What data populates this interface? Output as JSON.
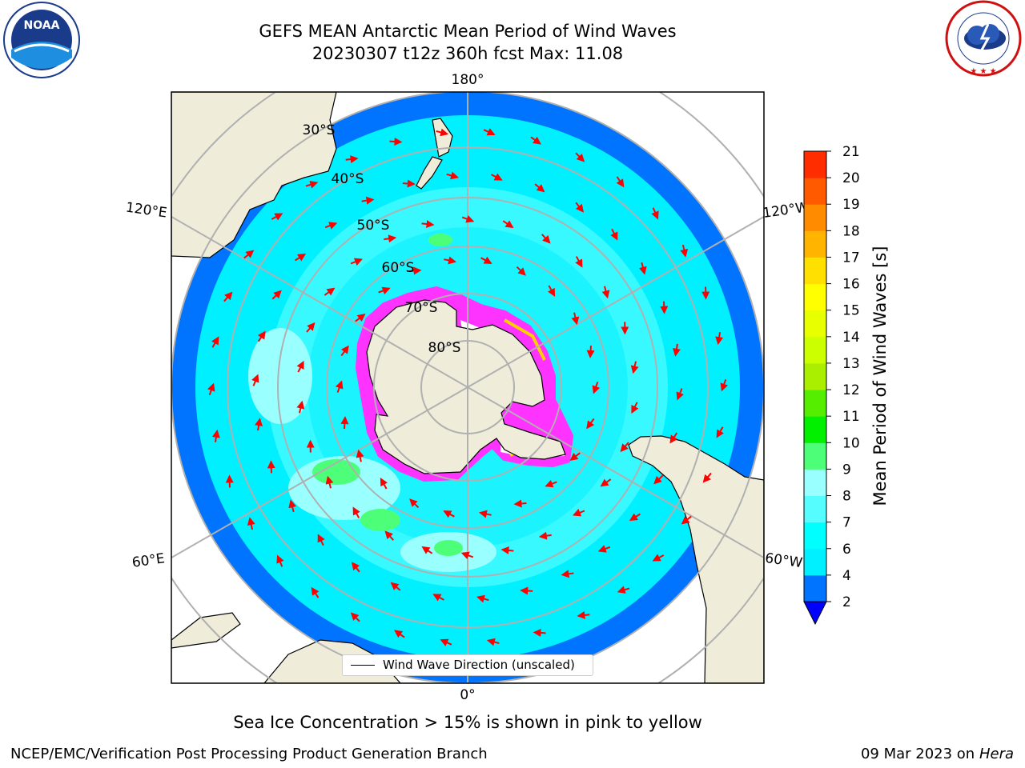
{
  "header": {
    "title_line1": "GEFS MEAN Antarctic Mean Period of Wind Waves",
    "title_line2": "20230307 t12z 360h fcst   Max: 11.08"
  },
  "logos": {
    "left": {
      "name": "noaa-logo",
      "text": "NOAA",
      "ring_text": "NATIONAL OCEANIC AND ATMOSPHERIC ADMINISTRATION · U.S. DEPARTMENT OF COMMERCE"
    },
    "right": {
      "name": "nws-logo",
      "ring_text": "NATIONAL WEATHER SERVICE"
    }
  },
  "map": {
    "projection": "south-polar-stereographic",
    "longitude_labels": [
      "180°",
      "120°E",
      "120°W",
      "60°E",
      "60°W",
      "0°"
    ],
    "latitude_labels": [
      "30°S",
      "40°S",
      "50°S",
      "60°S",
      "70°S",
      "80°S"
    ],
    "legend_label": "Wind Wave Direction (unscaled)",
    "colors": {
      "land": "#efedda",
      "ocean_2_4": "#0073ff",
      "ocean_4_6": "#00f0ff",
      "ocean_6_8": "#55fdff",
      "ocean_8_9": "#99ffff",
      "ocean_9_10": "#4dff78",
      "arrow": "#ff0000",
      "sea_ice": "#ff33ff",
      "sea_ice_edge": "#ffd000"
    }
  },
  "colorbar": {
    "label": "Mean Period of Wind Waves [s]",
    "ticks": [
      "2",
      "4",
      "6",
      "7",
      "8",
      "9",
      "10",
      "11",
      "12",
      "13",
      "14",
      "15",
      "16",
      "17",
      "18",
      "19",
      "20",
      "21"
    ],
    "colors": [
      "#0073ff",
      "#00f0ff",
      "#00ffff",
      "#55fdff",
      "#99ffff",
      "#4dff78",
      "#00f000",
      "#55ee00",
      "#aaee00",
      "#ccff00",
      "#e8ff00",
      "#ffff00",
      "#ffe000",
      "#ffb400",
      "#ff8c00",
      "#ff5a00",
      "#ff2d00",
      "#ff0000"
    ],
    "under_color": "#0000ff"
  },
  "footer": {
    "note": "Sea Ice Concentration > 15% is shown in pink to yellow",
    "credit": "NCEP/EMC/Verification Post Processing Product Generation Branch",
    "date": "09 Mar 2023 on",
    "host": "Hera"
  }
}
